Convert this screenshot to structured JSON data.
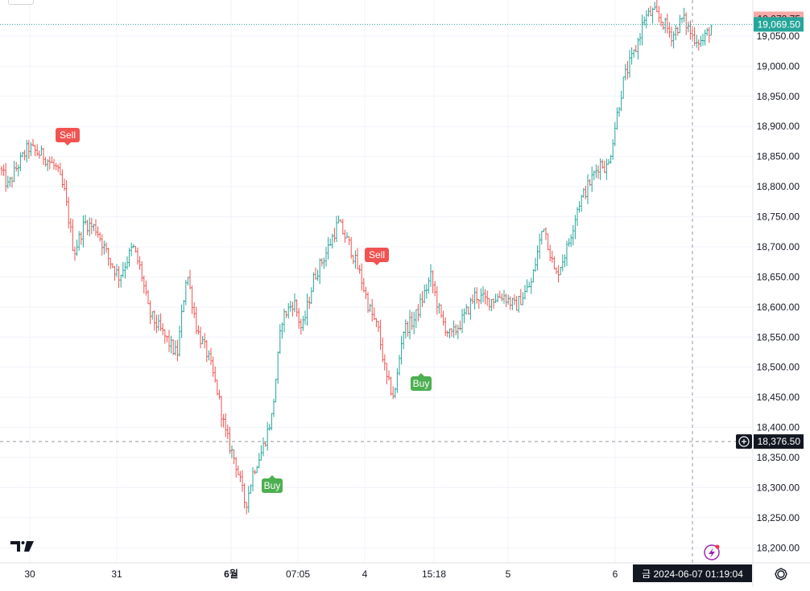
{
  "chart_data": {
    "type": "ohlc",
    "instrument_axis": "price",
    "ylim": [
      18175,
      19110
    ],
    "y_ticks": [
      19050,
      19000,
      18950,
      18900,
      18850,
      18800,
      18750,
      18700,
      18650,
      18600,
      18550,
      18500,
      18450,
      18400,
      18350,
      18300,
      18250,
      18200
    ],
    "y_tick_labels": [
      "19,050.00",
      "19,000.00",
      "18,950.00",
      "18,900.00",
      "18,850.00",
      "18,800.00",
      "18,750.00",
      "18,700.00",
      "18,650.00",
      "18,600.00",
      "18,550.00",
      "18,500.00",
      "18,450.00",
      "18,400.00",
      "18,350.00",
      "18,300.00",
      "18,250.00",
      "18,200.00"
    ],
    "x_labels": [
      "30",
      "31",
      "6월",
      "07:05",
      "4",
      "15:18",
      "5",
      "6"
    ],
    "x_label_bold": [
      "6월"
    ],
    "price_anchors": [
      [
        0,
        18830
      ],
      [
        10,
        18800
      ],
      [
        20,
        18830
      ],
      [
        35,
        18865
      ],
      [
        55,
        18850
      ],
      [
        70,
        18830
      ],
      [
        80,
        18790
      ],
      [
        92,
        18690
      ],
      [
        105,
        18740
      ],
      [
        120,
        18730
      ],
      [
        135,
        18680
      ],
      [
        148,
        18650
      ],
      [
        165,
        18700
      ],
      [
        175,
        18660
      ],
      [
        185,
        18590
      ],
      [
        200,
        18560
      ],
      [
        220,
        18520
      ],
      [
        232,
        18660
      ],
      [
        245,
        18560
      ],
      [
        258,
        18520
      ],
      [
        270,
        18460
      ],
      [
        280,
        18390
      ],
      [
        293,
        18340
      ],
      [
        305,
        18270
      ],
      [
        315,
        18330
      ],
      [
        325,
        18360
      ],
      [
        338,
        18420
      ],
      [
        350,
        18580
      ],
      [
        365,
        18610
      ],
      [
        375,
        18560
      ],
      [
        390,
        18650
      ],
      [
        405,
        18690
      ],
      [
        420,
        18740
      ],
      [
        435,
        18700
      ],
      [
        448,
        18650
      ],
      [
        458,
        18600
      ],
      [
        470,
        18560
      ],
      [
        480,
        18480
      ],
      [
        490,
        18450
      ],
      [
        500,
        18560
      ],
      [
        515,
        18580
      ],
      [
        535,
        18650
      ],
      [
        548,
        18580
      ],
      [
        560,
        18550
      ],
      [
        575,
        18580
      ],
      [
        590,
        18620
      ],
      [
        605,
        18610
      ],
      [
        625,
        18620
      ],
      [
        640,
        18600
      ],
      [
        660,
        18640
      ],
      [
        675,
        18740
      ],
      [
        690,
        18650
      ],
      [
        705,
        18700
      ],
      [
        718,
        18770
      ],
      [
        730,
        18800
      ],
      [
        745,
        18840
      ],
      [
        755,
        18830
      ],
      [
        765,
        18910
      ],
      [
        775,
        18980
      ],
      [
        790,
        19030
      ],
      [
        800,
        19080
      ],
      [
        812,
        19090
      ],
      [
        825,
        19070
      ],
      [
        835,
        19050
      ],
      [
        848,
        19080
      ],
      [
        860,
        19050
      ],
      [
        872,
        19040
      ],
      [
        885,
        19069.5
      ]
    ],
    "current_price_label": "19,069.50",
    "current_price": 19069.5,
    "top_price_label": "19,078.75",
    "top_price": 19078.75,
    "crosshair_price_label": "18,376.50",
    "crosshair_price": 18376.5,
    "crosshair_time_label": "금 2024-06-07   01:19:04",
    "signals": [
      {
        "type": "Sell",
        "label": "Sell",
        "price": 18860,
        "x_index": 84
      },
      {
        "type": "Sell",
        "label": "Sell",
        "price": 18700,
        "x_index": 468
      },
      {
        "type": "Buy",
        "label": "Buy",
        "price": 18440,
        "x_index": 523
      },
      {
        "type": "Buy",
        "label": "Buy",
        "price": 18300,
        "x_index": 338
      }
    ],
    "colors": {
      "up": "#26a69a",
      "down": "#ef5350",
      "grid": "#f0f3fa",
      "sell": "#f05350",
      "buy": "#4caf50",
      "current_price_bg": "#26a69a",
      "top_price_bg": "#f7a9a7",
      "crosshair_bg": "#131722",
      "crosshair_line": "#9598a1",
      "axis_text": "#131722"
    }
  },
  "ui": {
    "logo_text": "TV",
    "lightning_icon": "lightning-icon",
    "settings_icon": "gear-icon",
    "crosshair_plus_icon": "plus-circle-icon"
  }
}
